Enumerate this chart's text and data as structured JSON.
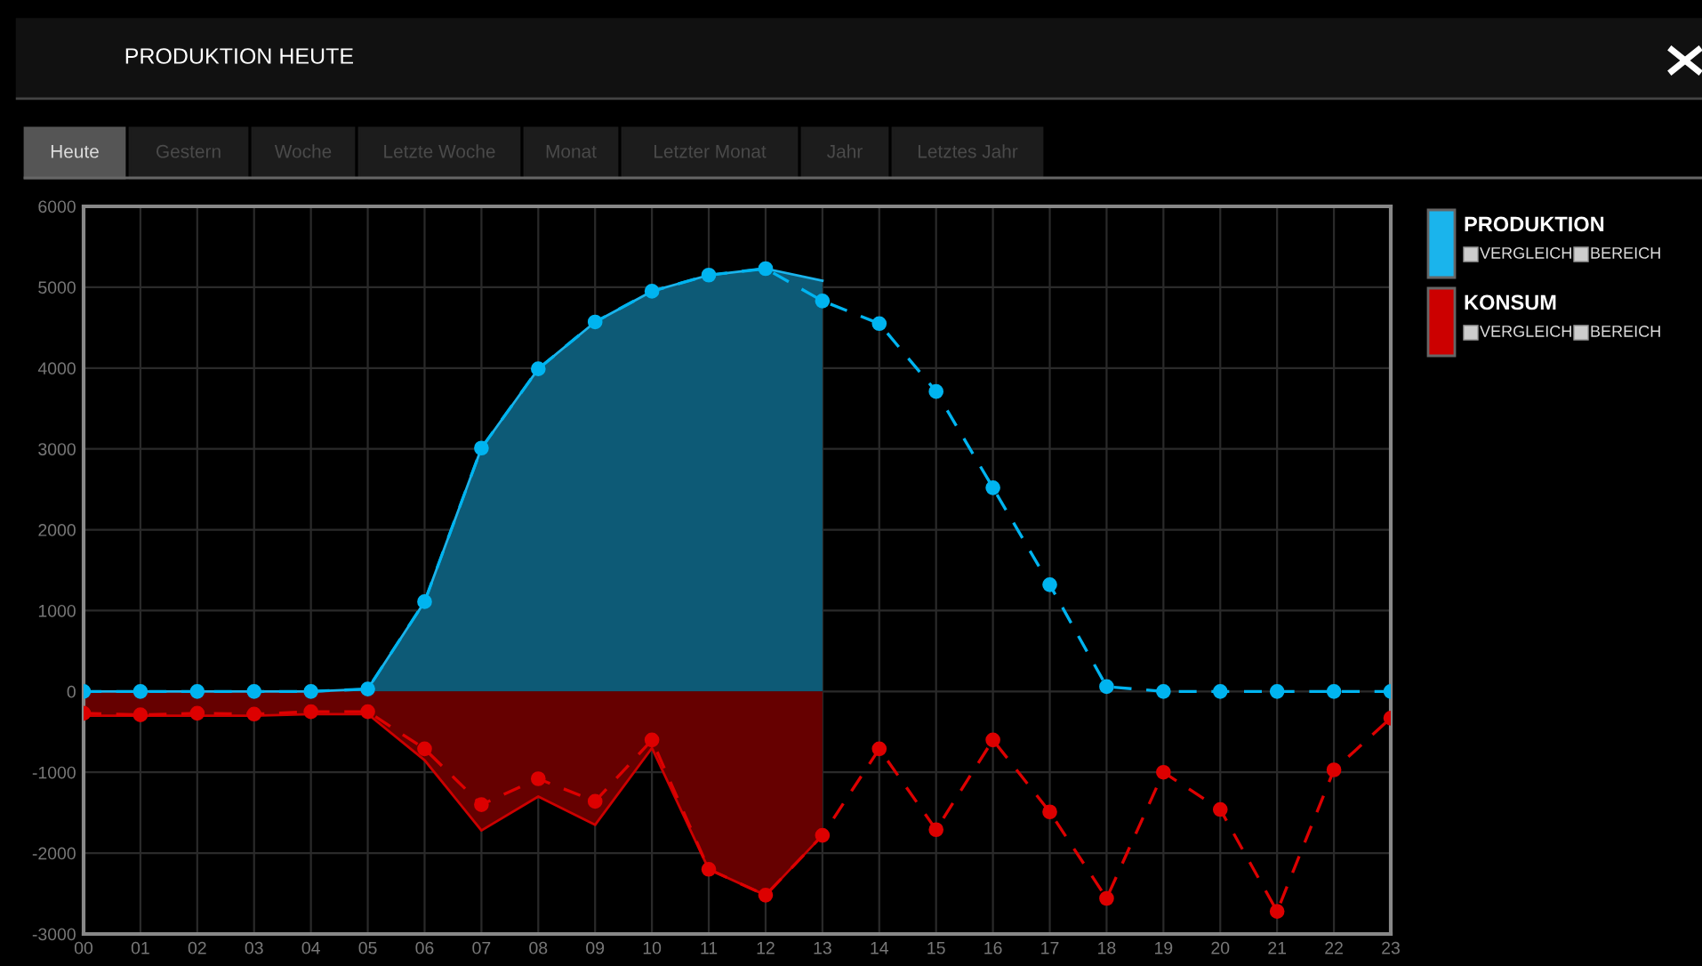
{
  "chart_data": {
    "type": "line",
    "title": "PRODUKTION HEUTE",
    "categories": [
      "00",
      "01",
      "02",
      "03",
      "04",
      "05",
      "06",
      "07",
      "08",
      "09",
      "10",
      "11",
      "12",
      "13",
      "14",
      "15",
      "16",
      "17",
      "18",
      "19",
      "20",
      "21",
      "22",
      "23"
    ],
    "series": [
      {
        "name": "PRODUKTION",
        "type": "area",
        "color": "#1ab4ec",
        "marker": "none",
        "line_style": "solid",
        "values": [
          0,
          0,
          0,
          0,
          0,
          30,
          1110,
          3010,
          3990,
          4570,
          4950,
          5150,
          5230,
          5080,
          null,
          null,
          null,
          null,
          null,
          null,
          null,
          null,
          null,
          null
        ]
      },
      {
        "name": "KONSUM",
        "type": "area",
        "color": "#cc0000",
        "marker": "none",
        "line_style": "solid",
        "values": [
          -300,
          -300,
          -300,
          -300,
          -280,
          -280,
          -850,
          -1720,
          -1300,
          -1650,
          -700,
          -2200,
          -2520,
          -1780,
          null,
          null,
          null,
          null,
          null,
          null,
          null,
          null,
          null,
          null
        ]
      },
      {
        "color": "#00b4f0",
        "marker": "circle",
        "line_style": "dashed",
        "values": [
          0,
          0,
          0,
          0,
          0,
          30,
          1110,
          3010,
          3990,
          4570,
          4950,
          5150,
          5230,
          4830,
          4550,
          3710,
          2520,
          1320,
          60,
          0,
          0,
          0,
          0,
          0
        ]
      },
      {
        "color": "#dd0000",
        "marker": "circle",
        "line_style": "dashed",
        "values": [
          -270,
          -290,
          -270,
          -280,
          -250,
          -250,
          -710,
          -1400,
          -1080,
          -1360,
          -600,
          -2200,
          -2520,
          -1780,
          -710,
          -1710,
          -600,
          -1490,
          -2560,
          -1000,
          -1460,
          -2720,
          -970,
          -330
        ]
      }
    ],
    "ylim": [
      -3000,
      6000
    ],
    "yticks": [
      -3000,
      -2000,
      -1000,
      0,
      1000,
      2000,
      3000,
      4000,
      5000,
      6000
    ],
    "grid": true,
    "legend": "top right",
    "annotations": [
      "Heute",
      "Gestern",
      "Woche",
      "Letzte Woche",
      "Monat",
      "Letzter Monat",
      "Jahr",
      "Letztes Jahr",
      "VERGLEICH",
      "BEREICH",
      "VERGLEICH",
      "BEREICH"
    ]
  }
}
